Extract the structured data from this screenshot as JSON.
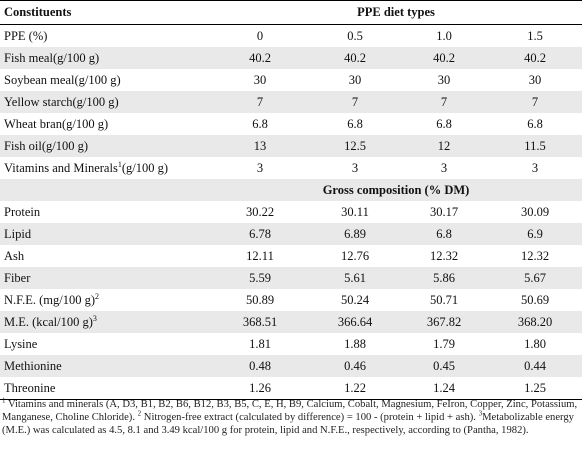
{
  "header": {
    "col0": "Constituents",
    "group": "PPE diet types"
  },
  "rows1": [
    {
      "label": "PPE (%)",
      "sup": "",
      "values": [
        "0",
        "0.5",
        "1.0",
        "1.5"
      ]
    },
    {
      "label": "Fish meal(g/100 g)",
      "sup": "",
      "values": [
        "40.2",
        "40.2",
        "40.2",
        "40.2"
      ]
    },
    {
      "label": "Soybean meal(g/100 g)",
      "sup": "",
      "values": [
        "30",
        "30",
        "30",
        "30"
      ]
    },
    {
      "label": "Yellow starch(g/100 g)",
      "sup": "",
      "values": [
        "7",
        "7",
        "7",
        "7"
      ]
    },
    {
      "label": "Wheat bran(g/100 g)",
      "sup": "",
      "values": [
        "6.8",
        "6.8",
        "6.8",
        "6.8"
      ]
    },
    {
      "label": "Fish oil(g/100 g)",
      "sup": "",
      "values": [
        "13",
        "12.5",
        "12",
        "11.5"
      ]
    },
    {
      "label": "Vitamins and Minerals",
      "sup": "1",
      "suffix": "(g/100 g)",
      "values": [
        "3",
        "3",
        "3",
        "3"
      ]
    }
  ],
  "subheader": "Gross composition (% DM)",
  "rows2": [
    {
      "label": "Protein",
      "sup": "",
      "values": [
        "30.22",
        "30.11",
        "30.17",
        "30.09"
      ]
    },
    {
      "label": "Lipid",
      "sup": "",
      "values": [
        "6.78",
        "6.89",
        "6.8",
        "6.9"
      ]
    },
    {
      "label": "Ash",
      "sup": "",
      "values": [
        "12.11",
        "12.76",
        "12.32",
        "12.32"
      ]
    },
    {
      "label": "Fiber",
      "sup": "",
      "values": [
        "5.59",
        "5.61",
        "5.86",
        "5.67"
      ]
    },
    {
      "label": "N.F.E. (mg/100 g)",
      "sup": "2",
      "values": [
        "50.89",
        "50.24",
        "50.71",
        "50.69"
      ]
    },
    {
      "label": "M.E. (kcal/100 g)",
      "sup": "3",
      "values": [
        "368.51",
        "366.64",
        "367.82",
        "368.20"
      ]
    },
    {
      "label": "Lysine",
      "sup": "",
      "values": [
        "1.81",
        "1.88",
        "1.79",
        "1.80"
      ]
    },
    {
      "label": "Methionine",
      "sup": "",
      "values": [
        "0.48",
        "0.46",
        "0.45",
        "0.44"
      ]
    },
    {
      "label": "Threonine",
      "sup": "",
      "values": [
        "1.26",
        "1.22",
        "1.24",
        "1.25"
      ]
    }
  ],
  "footnote": {
    "sup1": "1",
    "text1": " Vitamins and minerals (A, D3, B1, B2, B6, B12, B3, B5, C, E, H, B9, Calcium, Cobalt, Magnesium, FeIron, Copper, Zinc, Potassium, Manganese, Choline Chloride). ",
    "sup2": "2",
    "text2": " Nitrogen-free extract (calculated by difference) = 100 - (protein + lipid + ash). ",
    "sup3": "3",
    "text3": "Metabolizable energy (M.E.) was calculated as 4.5, 8.1 and 3.49 kcal/100 g for protein, lipid and N.F.E., respectively, according to (Pantha, 1982)."
  }
}
